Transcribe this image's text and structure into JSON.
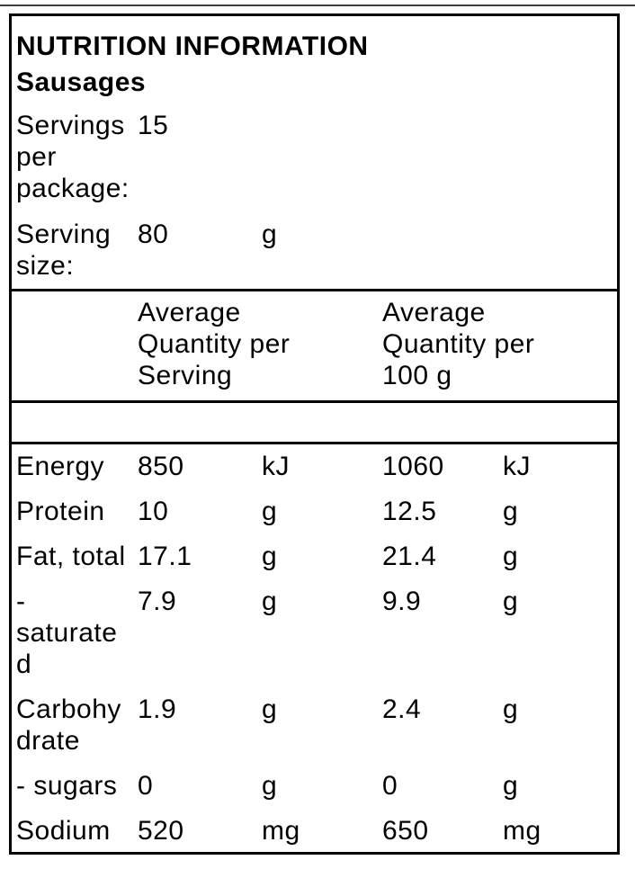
{
  "panel": {
    "title": "NUTRITION INFORMATION",
    "product": "Sausages",
    "servings_per_package": {
      "label": "Servings per package:",
      "value": "15"
    },
    "serving_size": {
      "label": "Serving size:",
      "value": "80",
      "unit": "g"
    }
  },
  "table": {
    "headers": {
      "per_serving": "Average Quantity per Serving",
      "per_100g": "Average Quantity per 100 g"
    },
    "rows": [
      {
        "nutrient": "Energy",
        "serving_value": "850",
        "serving_unit": "kJ",
        "per100_value": "1060",
        "per100_unit": "kJ"
      },
      {
        "nutrient": "Protein",
        "serving_value": "10",
        "serving_unit": "g",
        "per100_value": "12.5",
        "per100_unit": "g"
      },
      {
        "nutrient": "Fat, total",
        "serving_value": "17.1",
        "serving_unit": "g",
        "per100_value": "21.4",
        "per100_unit": "g"
      },
      {
        "nutrient": "- saturated",
        "serving_value": "7.9",
        "serving_unit": "g",
        "per100_value": "9.9",
        "per100_unit": "g"
      },
      {
        "nutrient": "Carbohydrate",
        "serving_value": "1.9",
        "serving_unit": "g",
        "per100_value": "2.4",
        "per100_unit": "g"
      },
      {
        "nutrient": "- sugars",
        "serving_value": "0",
        "serving_unit": "g",
        "per100_value": "0",
        "per100_unit": "g"
      },
      {
        "nutrient": "Sodium",
        "serving_value": "520",
        "serving_unit": "mg",
        "per100_value": "650",
        "per100_unit": "mg"
      }
    ]
  },
  "colors": {
    "border": "#000000",
    "text": "#000000",
    "background": "#ffffff"
  }
}
